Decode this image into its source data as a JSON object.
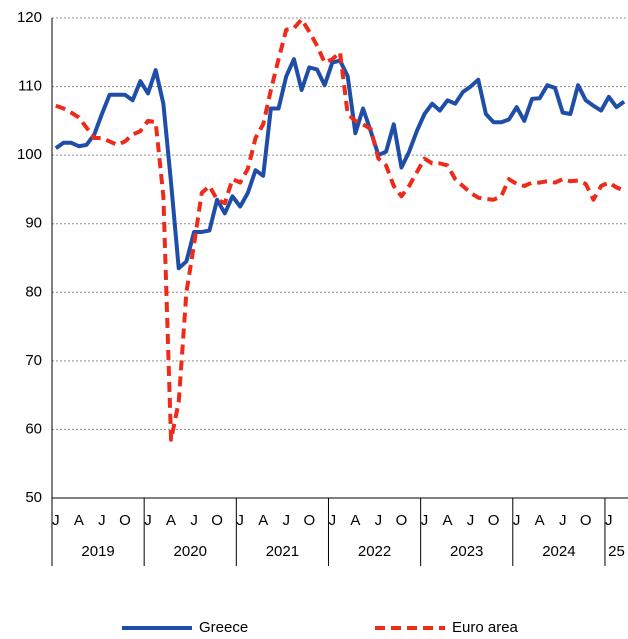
{
  "chart_data": {
    "type": "line",
    "categories": [
      "J",
      null,
      null,
      "A",
      null,
      null,
      "J",
      null,
      null,
      "O",
      null,
      null,
      "J",
      null,
      null,
      "A",
      null,
      null,
      "J",
      null,
      null,
      "O",
      null,
      null,
      "J",
      null,
      null,
      "A",
      null,
      null,
      "J",
      null,
      null,
      "O",
      null,
      null,
      "J",
      null,
      null,
      "A",
      null,
      null,
      "J",
      null,
      null,
      "O",
      null,
      null,
      "J",
      null,
      null,
      "A",
      null,
      null,
      "J",
      null,
      null,
      "O",
      null,
      null,
      "J",
      null,
      null,
      "A",
      null,
      null,
      "J",
      null,
      null,
      "O",
      null,
      null,
      "J",
      null,
      null
    ],
    "years": [
      "2019",
      "2020",
      "2021",
      "2022",
      "2023",
      "2024",
      "25"
    ],
    "series": [
      {
        "name": "Greece",
        "color": "#1f4ea8",
        "dash": false,
        "values": [
          101,
          101.8,
          101.8,
          101.3,
          101.5,
          103,
          106,
          108.8,
          108.8,
          108.8,
          108,
          110.8,
          109,
          112.4,
          107.5,
          96,
          83.5,
          84.5,
          88.8,
          88.8,
          89,
          93.5,
          91.5,
          94,
          92.5,
          94.5,
          97.8,
          97,
          106.8,
          106.8,
          111.5,
          114,
          109.5,
          112.8,
          112.5,
          110.2,
          113.5,
          113.8,
          111.5,
          103.2,
          106.8,
          103.5,
          100,
          100.5,
          104.5,
          98.2,
          100.5,
          103.5,
          106,
          107.5,
          106.5,
          108,
          107.5,
          109.2,
          110,
          111,
          106,
          104.8,
          104.8,
          105.2,
          107,
          105,
          108.2,
          108.3,
          110.2,
          109.8,
          106.2,
          106,
          110.2,
          108,
          107.2,
          106.5,
          108.5,
          107,
          107.8
        ]
      },
      {
        "name": "Euro area",
        "color": "#ee2a1b",
        "dash": true,
        "values": [
          107.2,
          106.8,
          106.2,
          105.5,
          104,
          102.5,
          102.5,
          102,
          101.5,
          102,
          103,
          103.5,
          105,
          104.8,
          94,
          58.5,
          64,
          80,
          87,
          94.5,
          95.5,
          93.5,
          93,
          96.5,
          96,
          98,
          102.5,
          104.5,
          109.5,
          114,
          118.3,
          118.5,
          119.8,
          118,
          116,
          113.5,
          114,
          115,
          106,
          105,
          104.5,
          103.8,
          99.5,
          98.5,
          95.5,
          94,
          95.5,
          97.5,
          99.5,
          98.8,
          98.8,
          98.5,
          96.5,
          95.5,
          94.5,
          93.8,
          93.6,
          93.5,
          94,
          96.5,
          95.8,
          95.5,
          96,
          96,
          96.2,
          96,
          96.5,
          96.2,
          96.3,
          95.8,
          93.5,
          95.5,
          96,
          95.3,
          94.8
        ]
      }
    ],
    "ylim": [
      50,
      120
    ],
    "yticks": [
      50,
      60,
      70,
      80,
      90,
      100,
      110,
      120
    ],
    "grid": true
  }
}
